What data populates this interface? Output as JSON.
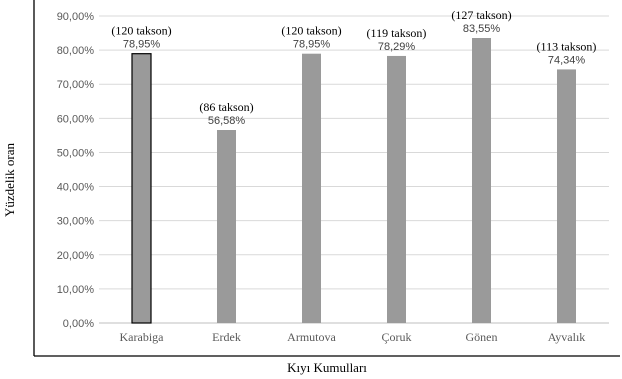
{
  "chart_data": {
    "type": "bar",
    "categories": [
      "Karabiga",
      "Erdek",
      "Armutova",
      "Çoruk",
      "Gönen",
      "Ayvalık"
    ],
    "values": [
      78.95,
      56.58,
      78.95,
      78.29,
      83.55,
      74.34
    ],
    "data_labels": [
      "78,95%",
      "56,58%",
      "78,95%",
      "78,29%",
      "83,55%",
      "74,34%"
    ],
    "annotations": [
      "(120 takson)",
      "(86 takson)",
      "(120 takson)",
      "(119 takson)",
      "(127 takson)",
      "(113 takson)"
    ],
    "ylim": [
      0,
      90
    ],
    "ytick_values": [
      0,
      10,
      20,
      30,
      40,
      50,
      60,
      70,
      80,
      90
    ],
    "ytick_labels": [
      "0,00%",
      "10,00%",
      "20,00%",
      "30,00%",
      "40,00%",
      "50,00%",
      "60,00%",
      "70,00%",
      "80,00%",
      "90,00%"
    ],
    "xlabel": "Kıyı Kumulları",
    "ylabel": "Yüzdelik oran",
    "grid": true,
    "bar_color": "#9a9a9a",
    "highlight_index": 0,
    "highlight_stroke": "#000000"
  }
}
